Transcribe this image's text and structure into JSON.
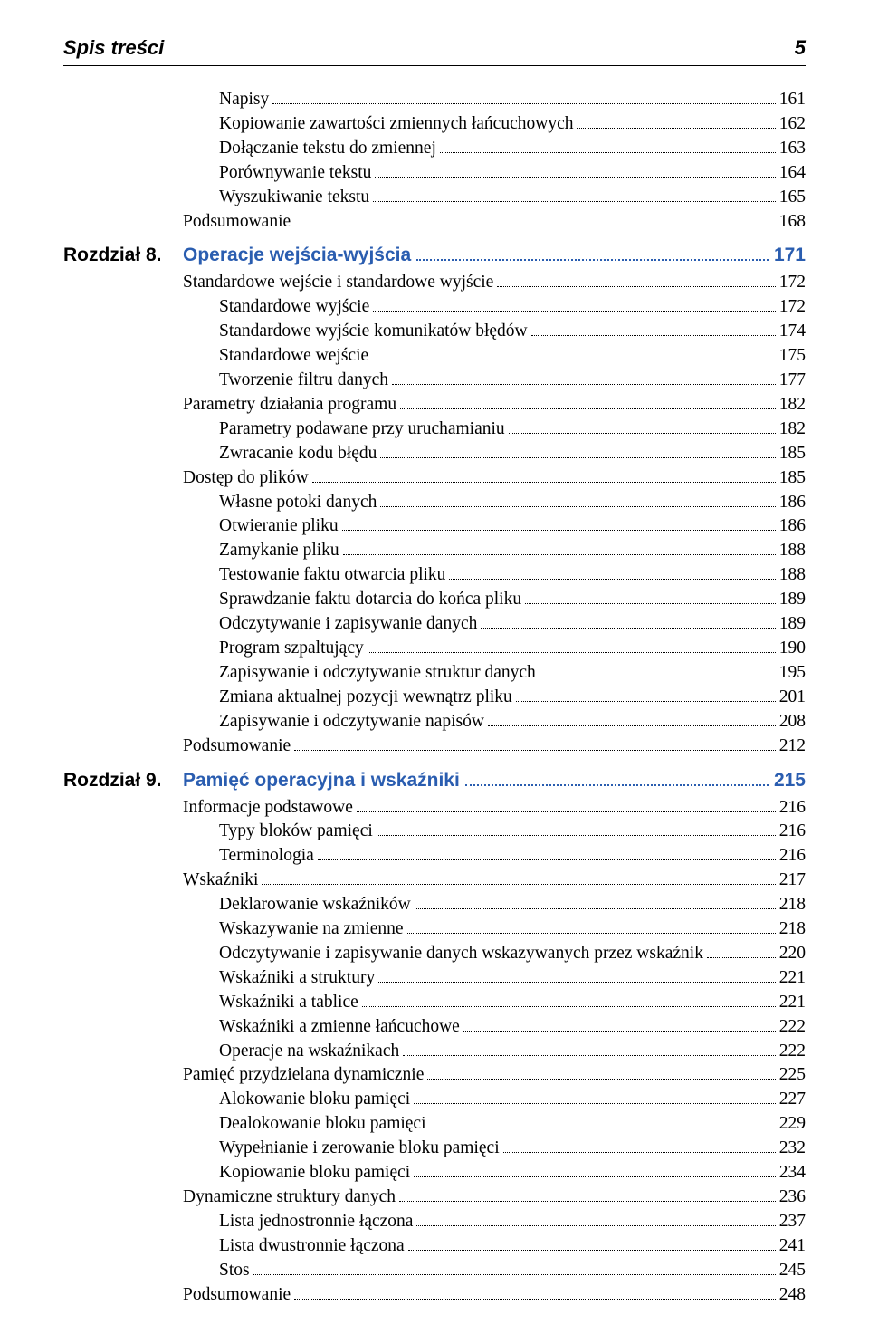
{
  "header": {
    "title": "Spis treści",
    "page": "5"
  },
  "colors": {
    "chapter_accent": "#2a5db0",
    "text": "#000000",
    "background": "#ffffff"
  },
  "toc": [
    {
      "level": 2,
      "label": "Napisy",
      "page": "161"
    },
    {
      "level": 2,
      "label": "Kopiowanie zawartości zmiennych łańcuchowych",
      "page": "162"
    },
    {
      "level": 2,
      "label": "Dołączanie tekstu do zmiennej",
      "page": "163"
    },
    {
      "level": 2,
      "label": "Porównywanie tekstu",
      "page": "164"
    },
    {
      "level": 2,
      "label": "Wyszukiwanie tekstu",
      "page": "165"
    },
    {
      "level": 1,
      "label": "Podsumowanie",
      "page": "168"
    },
    {
      "level": 0,
      "prefix": "Rozdział 8.",
      "label": "Operacje wejścia-wyjścia",
      "page": "171"
    },
    {
      "level": 1,
      "label": "Standardowe wejście i standardowe wyjście",
      "page": "172"
    },
    {
      "level": 2,
      "label": "Standardowe wyjście",
      "page": "172"
    },
    {
      "level": 2,
      "label": "Standardowe wyjście komunikatów błędów",
      "page": "174"
    },
    {
      "level": 2,
      "label": "Standardowe wejście",
      "page": "175"
    },
    {
      "level": 2,
      "label": "Tworzenie filtru danych",
      "page": "177"
    },
    {
      "level": 1,
      "label": "Parametry działania programu",
      "page": "182"
    },
    {
      "level": 2,
      "label": "Parametry podawane przy uruchamianiu",
      "page": "182"
    },
    {
      "level": 2,
      "label": "Zwracanie kodu błędu",
      "page": "185"
    },
    {
      "level": 1,
      "label": "Dostęp do plików",
      "page": "185"
    },
    {
      "level": 2,
      "label": "Własne potoki danych",
      "page": "186"
    },
    {
      "level": 2,
      "label": "Otwieranie pliku",
      "page": "186"
    },
    {
      "level": 2,
      "label": "Zamykanie pliku",
      "page": "188"
    },
    {
      "level": 2,
      "label": "Testowanie faktu otwarcia pliku",
      "page": "188"
    },
    {
      "level": 2,
      "label": "Sprawdzanie faktu dotarcia do końca pliku",
      "page": "189"
    },
    {
      "level": 2,
      "label": "Odczytywanie i zapisywanie danych",
      "page": "189"
    },
    {
      "level": 2,
      "label": "Program szpaltujący",
      "page": "190"
    },
    {
      "level": 2,
      "label": "Zapisywanie i odczytywanie struktur danych",
      "page": "195"
    },
    {
      "level": 2,
      "label": "Zmiana aktualnej pozycji wewnątrz pliku",
      "page": "201"
    },
    {
      "level": 2,
      "label": "Zapisywanie i odczytywanie napisów",
      "page": "208"
    },
    {
      "level": 1,
      "label": "Podsumowanie",
      "page": "212"
    },
    {
      "level": 0,
      "prefix": "Rozdział 9.",
      "label": "Pamięć operacyjna i wskaźniki",
      "page": "215"
    },
    {
      "level": 1,
      "label": "Informacje podstawowe",
      "page": "216"
    },
    {
      "level": 2,
      "label": "Typy bloków pamięci",
      "page": "216"
    },
    {
      "level": 2,
      "label": "Terminologia",
      "page": "216"
    },
    {
      "level": 1,
      "label": "Wskaźniki",
      "page": "217"
    },
    {
      "level": 2,
      "label": "Deklarowanie wskaźników",
      "page": "218"
    },
    {
      "level": 2,
      "label": "Wskazywanie na zmienne",
      "page": "218"
    },
    {
      "level": 2,
      "label": "Odczytywanie i zapisywanie danych wskazywanych przez wskaźnik",
      "page": "220"
    },
    {
      "level": 2,
      "label": "Wskaźniki a struktury",
      "page": "221"
    },
    {
      "level": 2,
      "label": "Wskaźniki a tablice",
      "page": "221"
    },
    {
      "level": 2,
      "label": "Wskaźniki a zmienne łańcuchowe",
      "page": "222"
    },
    {
      "level": 2,
      "label": "Operacje na wskaźnikach",
      "page": "222"
    },
    {
      "level": 1,
      "label": "Pamięć przydzielana dynamicznie",
      "page": "225"
    },
    {
      "level": 2,
      "label": "Alokowanie bloku pamięci",
      "page": "227"
    },
    {
      "level": 2,
      "label": "Dealokowanie bloku pamięci",
      "page": "229"
    },
    {
      "level": 2,
      "label": "Wypełnianie i zerowanie bloku pamięci",
      "page": "232"
    },
    {
      "level": 2,
      "label": "Kopiowanie bloku pamięci",
      "page": "234"
    },
    {
      "level": 1,
      "label": "Dynamiczne struktury danych",
      "page": "236"
    },
    {
      "level": 2,
      "label": "Lista jednostronnie łączona",
      "page": "237"
    },
    {
      "level": 2,
      "label": "Lista dwustronnie łączona",
      "page": "241"
    },
    {
      "level": 2,
      "label": "Stos",
      "page": "245"
    },
    {
      "level": 1,
      "label": "Podsumowanie",
      "page": "248"
    }
  ]
}
